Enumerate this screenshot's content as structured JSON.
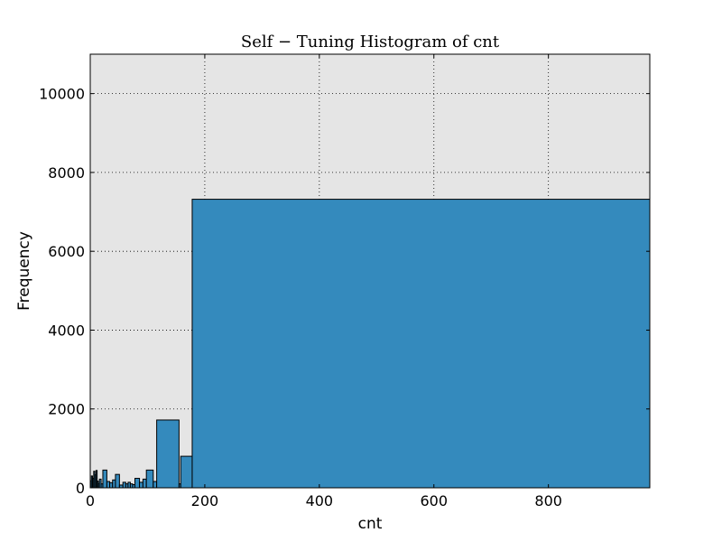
{
  "chart_data": {
    "type": "bar",
    "title": "Self − Tuning Histogram of cnt",
    "xlabel": "cnt",
    "ylabel": "Frequency",
    "xlim": [
      0,
      977
    ],
    "ylim": [
      0,
      11000
    ],
    "x_ticks": [
      0,
      200,
      400,
      600,
      800
    ],
    "y_ticks": [
      0,
      2000,
      4000,
      6000,
      8000,
      10000
    ],
    "grid": true,
    "bar_color": "#348abd",
    "background_color": "#e5e5e5",
    "bins": [
      {
        "x0": 0,
        "x1": 2,
        "value": 180
      },
      {
        "x0": 2,
        "x1": 4,
        "value": 300
      },
      {
        "x0": 4,
        "x1": 6,
        "value": 240
      },
      {
        "x0": 6,
        "x1": 8,
        "value": 420
      },
      {
        "x0": 8,
        "x1": 10,
        "value": 330
      },
      {
        "x0": 10,
        "x1": 12,
        "value": 440
      },
      {
        "x0": 12,
        "x1": 14,
        "value": 170
      },
      {
        "x0": 14,
        "x1": 16,
        "value": 110
      },
      {
        "x0": 16,
        "x1": 19,
        "value": 220
      },
      {
        "x0": 19,
        "x1": 22,
        "value": 100
      },
      {
        "x0": 22,
        "x1": 29,
        "value": 450
      },
      {
        "x0": 29,
        "x1": 34,
        "value": 160
      },
      {
        "x0": 34,
        "x1": 39,
        "value": 130
      },
      {
        "x0": 39,
        "x1": 44,
        "value": 200
      },
      {
        "x0": 44,
        "x1": 51,
        "value": 340
      },
      {
        "x0": 51,
        "x1": 57,
        "value": 70
      },
      {
        "x0": 57,
        "x1": 62,
        "value": 140
      },
      {
        "x0": 62,
        "x1": 66,
        "value": 100
      },
      {
        "x0": 66,
        "x1": 70,
        "value": 140
      },
      {
        "x0": 70,
        "x1": 74,
        "value": 100
      },
      {
        "x0": 74,
        "x1": 78,
        "value": 80
      },
      {
        "x0": 78,
        "x1": 86,
        "value": 240
      },
      {
        "x0": 86,
        "x1": 92,
        "value": 140
      },
      {
        "x0": 92,
        "x1": 98,
        "value": 220
      },
      {
        "x0": 98,
        "x1": 110,
        "value": 450
      },
      {
        "x0": 110,
        "x1": 116,
        "value": 160
      },
      {
        "x0": 116,
        "x1": 155,
        "value": 1720
      },
      {
        "x0": 155,
        "x1": 158,
        "value": 100
      },
      {
        "x0": 158,
        "x1": 178,
        "value": 800
      },
      {
        "x0": 178,
        "x1": 977,
        "value": 7320
      }
    ]
  }
}
